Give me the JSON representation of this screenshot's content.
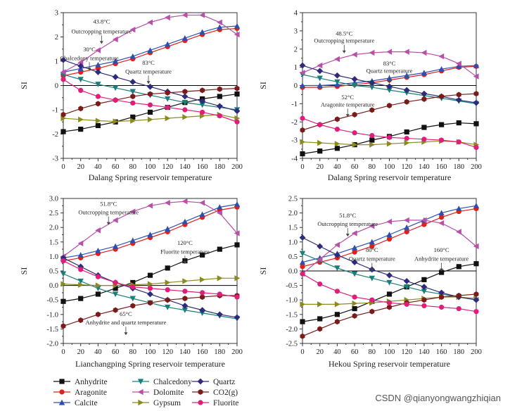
{
  "watermark": "CSDN @qianyongwangzhiqian",
  "legend_order": [
    "Anhydrite",
    "Chalcedony",
    "Quartz",
    "Aragonite",
    "Dolomite",
    "CO2(g)",
    "Calcite",
    "Gypsum",
    "Fluorite"
  ],
  "series_style": {
    "Anhydrite": {
      "color": "#111111",
      "marker": "square",
      "label": "Anhydrite"
    },
    "Chalcedony": {
      "color": "#1a7f7a",
      "marker": "triangle-down",
      "label": "Chalcedony"
    },
    "Quartz": {
      "color": "#2e2b7a",
      "marker": "diamond",
      "label": "Quartz"
    },
    "Aragonite": {
      "color": "#e0201b",
      "marker": "circle",
      "label": "Aragonite"
    },
    "Dolomite": {
      "color": "#b84fa8",
      "marker": "triangle-left",
      "label": "Dolomite"
    },
    "CO2(g)": {
      "color": "#7a1a1a",
      "marker": "hexagon",
      "label": "CO2(g)"
    },
    "Calcite": {
      "color": "#2f4fb0",
      "marker": "triangle-up",
      "label": "Calcite"
    },
    "Gypsum": {
      "color": "#8a8a1e",
      "marker": "triangle-right",
      "label": "Gypsum"
    },
    "Fluorite": {
      "color": "#e01e7a",
      "marker": "circle",
      "label": "Fluorite"
    }
  },
  "chart_data": [
    {
      "type": "line",
      "title": "Dalang Spring",
      "xlabel": "Dalang Spring reservoir temperature",
      "ylabel": "SI",
      "xlim": [
        0,
        200
      ],
      "ylim": [
        -3,
        3
      ],
      "xticks": [
        0,
        20,
        40,
        60,
        80,
        100,
        120,
        140,
        160,
        180,
        200
      ],
      "yticks": [
        -3,
        -2,
        -1,
        0,
        1,
        2,
        3
      ],
      "x": [
        0,
        20,
        40,
        60,
        80,
        100,
        120,
        140,
        160,
        180,
        200
      ],
      "series": [
        {
          "name": "Anhydrite",
          "values": [
            -1.9,
            -1.8,
            -1.65,
            -1.5,
            -1.3,
            -1.1,
            -0.9,
            -0.7,
            -0.55,
            -0.45,
            -0.35
          ]
        },
        {
          "name": "Aragonite",
          "values": [
            0.4,
            0.55,
            0.7,
            0.9,
            1.1,
            1.35,
            1.6,
            1.85,
            2.1,
            2.3,
            2.35
          ]
        },
        {
          "name": "Calcite",
          "values": [
            0.55,
            0.7,
            0.85,
            1.0,
            1.2,
            1.45,
            1.7,
            1.95,
            2.2,
            2.4,
            2.45
          ]
        },
        {
          "name": "Chalcedony",
          "values": [
            0.45,
            0.25,
            0.05,
            -0.1,
            -0.25,
            -0.4,
            -0.55,
            -0.7,
            -0.8,
            -0.9,
            -1.0
          ]
        },
        {
          "name": "Dolomite",
          "values": [
            0.55,
            0.95,
            1.45,
            1.9,
            2.3,
            2.6,
            2.8,
            2.9,
            2.9,
            2.6,
            2.1
          ]
        },
        {
          "name": "Gypsum",
          "values": [
            -1.35,
            -1.4,
            -1.45,
            -1.48,
            -1.45,
            -1.4,
            -1.35,
            -1.3,
            -1.25,
            -1.2,
            -1.35
          ]
        },
        {
          "name": "Quartz",
          "values": [
            1.05,
            0.8,
            0.55,
            0.35,
            0.15,
            -0.05,
            -0.25,
            -0.45,
            -0.65,
            -0.85,
            -1.05
          ]
        },
        {
          "name": "CO2(g)",
          "values": [
            -1.2,
            -0.95,
            -0.75,
            -0.6,
            -0.45,
            -0.35,
            -0.3,
            -0.25,
            -0.2,
            -0.15,
            -0.12
          ]
        },
        {
          "name": "Fluorite",
          "values": [
            0.25,
            -0.2,
            -0.45,
            -0.6,
            -0.72,
            -0.8,
            -0.9,
            -1.0,
            -1.1,
            -1.25,
            -1.5
          ]
        }
      ],
      "annotations": [
        {
          "text": "43.8°C",
          "x": 44,
          "y": 2.55
        },
        {
          "text": "Outcropping temperature",
          "x": 44,
          "y": 2.15
        },
        {
          "text": "30°C",
          "x": 30,
          "y": 1.4
        },
        {
          "text": "Chalcedony temperature",
          "x": 30,
          "y": 1.05
        },
        {
          "text": "83°C",
          "x": 98,
          "y": 0.85
        },
        {
          "text": "Quartz temperature",
          "x": 98,
          "y": 0.5
        }
      ]
    },
    {
      "type": "line",
      "title": "Dalang Spring",
      "xlabel": "Dalang Spring reservoir temperature",
      "ylabel": "SI",
      "xlim": [
        0,
        200
      ],
      "ylim": [
        -4,
        4
      ],
      "xticks": [
        0,
        20,
        40,
        60,
        80,
        100,
        120,
        140,
        160,
        180,
        200
      ],
      "yticks": [
        -4,
        -3,
        -2,
        -1,
        0,
        1,
        2,
        3,
        4
      ],
      "x": [
        0,
        20,
        40,
        60,
        80,
        100,
        120,
        140,
        160,
        180,
        200
      ],
      "series": [
        {
          "name": "Anhydrite",
          "values": [
            -3.75,
            -3.6,
            -3.45,
            -3.25,
            -3.0,
            -2.8,
            -2.55,
            -2.3,
            -2.15,
            -2.05,
            -2.1
          ]
        },
        {
          "name": "Aragonite",
          "values": [
            -0.1,
            -0.1,
            -0.05,
            0.05,
            0.15,
            0.3,
            0.45,
            0.6,
            0.8,
            1.0,
            1.05
          ]
        },
        {
          "name": "Calcite",
          "values": [
            0.0,
            0.0,
            0.05,
            0.15,
            0.25,
            0.4,
            0.55,
            0.7,
            0.9,
            1.05,
            1.1
          ]
        },
        {
          "name": "Chalcedony",
          "values": [
            0.6,
            0.4,
            0.2,
            0.0,
            -0.1,
            -0.25,
            -0.4,
            -0.55,
            -0.7,
            -0.85,
            -1.0
          ]
        },
        {
          "name": "Dolomite",
          "values": [
            0.7,
            1.1,
            1.45,
            1.7,
            1.8,
            1.85,
            1.85,
            1.8,
            1.6,
            1.2,
            0.5
          ]
        },
        {
          "name": "Gypsum",
          "values": [
            -3.1,
            -3.15,
            -3.2,
            -3.25,
            -3.25,
            -3.2,
            -3.15,
            -3.1,
            -3.05,
            -3.1,
            -3.25
          ]
        },
        {
          "name": "Quartz",
          "values": [
            1.1,
            0.8,
            0.55,
            0.35,
            0.15,
            -0.05,
            -0.25,
            -0.45,
            -0.6,
            -0.8,
            -0.95
          ]
        },
        {
          "name": "CO2(g)",
          "values": [
            -2.45,
            -2.15,
            -1.85,
            -1.6,
            -1.35,
            -1.1,
            -0.9,
            -0.75,
            -0.6,
            -0.5,
            -0.45
          ]
        },
        {
          "name": "Fluorite",
          "values": [
            -1.8,
            -2.15,
            -2.4,
            -2.6,
            -2.75,
            -2.85,
            -2.9,
            -2.95,
            -3.0,
            -3.1,
            -3.4
          ]
        }
      ],
      "annotations": [
        {
          "text": "48.5°C",
          "x": 48,
          "y": 2.75
        },
        {
          "text": "Outcropping temperature",
          "x": 48,
          "y": 2.35
        },
        {
          "text": "83°C",
          "x": 100,
          "y": 1.1
        },
        {
          "text": "Quartz temperature",
          "x": 100,
          "y": 0.7
        },
        {
          "text": "52°C",
          "x": 52,
          "y": -0.75
        },
        {
          "text": "Aragonite temperature",
          "x": 52,
          "y": -1.15
        }
      ]
    },
    {
      "type": "line",
      "title": "Lianchangping Spring",
      "xlabel": "Lianchangping Spring reservoir temperature",
      "ylabel": "SI",
      "xlim": [
        0,
        200
      ],
      "ylim": [
        -2.0,
        3.0
      ],
      "xticks": [
        0,
        20,
        40,
        60,
        80,
        100,
        120,
        140,
        160,
        180,
        200
      ],
      "yticks": [
        -2.0,
        -1.5,
        -1.0,
        -0.5,
        0.0,
        0.5,
        1.0,
        1.5,
        2.0,
        2.5,
        3.0
      ],
      "x": [
        0,
        20,
        40,
        60,
        80,
        100,
        120,
        140,
        160,
        180,
        200
      ],
      "series": [
        {
          "name": "Anhydrite",
          "values": [
            -0.55,
            -0.45,
            -0.3,
            -0.1,
            0.1,
            0.35,
            0.6,
            0.85,
            1.05,
            1.25,
            1.4
          ]
        },
        {
          "name": "Aragonite",
          "values": [
            0.85,
            0.95,
            1.1,
            1.25,
            1.45,
            1.65,
            1.85,
            2.1,
            2.35,
            2.6,
            2.7
          ]
        },
        {
          "name": "Calcite",
          "values": [
            0.95,
            1.05,
            1.2,
            1.35,
            1.55,
            1.75,
            1.95,
            2.2,
            2.45,
            2.7,
            2.8
          ]
        },
        {
          "name": "Chalcedony",
          "values": [
            0.4,
            0.15,
            -0.1,
            -0.3,
            -0.45,
            -0.6,
            -0.75,
            -0.85,
            -0.95,
            -1.05,
            -1.15
          ]
        },
        {
          "name": "Dolomite",
          "values": [
            1.0,
            1.45,
            1.9,
            2.25,
            2.55,
            2.75,
            2.85,
            2.9,
            2.85,
            2.5,
            1.8
          ]
        },
        {
          "name": "Gypsum",
          "values": [
            0.05,
            0.02,
            0.0,
            0.0,
            0.02,
            0.05,
            0.1,
            0.15,
            0.2,
            0.25,
            0.25
          ]
        },
        {
          "name": "Quartz",
          "values": [
            0.95,
            0.65,
            0.35,
            0.1,
            -0.1,
            -0.3,
            -0.5,
            -0.7,
            -0.85,
            -1.0,
            -1.1
          ]
        },
        {
          "name": "CO2(g)",
          "values": [
            -1.4,
            -1.2,
            -1.0,
            -0.85,
            -0.7,
            -0.6,
            -0.5,
            -0.45,
            -0.4,
            -0.35,
            -0.35
          ]
        },
        {
          "name": "Fluorite",
          "values": [
            0.85,
            0.55,
            0.3,
            0.1,
            -0.05,
            -0.1,
            -0.15,
            -0.2,
            -0.25,
            -0.3,
            -0.4
          ]
        }
      ],
      "annotations": [
        {
          "text": "51.8°C",
          "x": 52,
          "y": 2.75
        },
        {
          "text": "Outcropping temperature",
          "x": 52,
          "y": 2.45
        },
        {
          "text": "120°C",
          "x": 140,
          "y": 1.4
        },
        {
          "text": "Fluorite temperature",
          "x": 140,
          "y": 1.1
        },
        {
          "text": "65°C",
          "x": 72,
          "y": -1.05
        },
        {
          "text": "Anhydrite and quartz temperature",
          "x": 72,
          "y": -1.35
        }
      ]
    },
    {
      "type": "line",
      "title": "Hekou Spring",
      "xlabel": "Hekou Spring reservoir temperature",
      "ylabel": "SI",
      "xlim": [
        0,
        200
      ],
      "ylim": [
        -2.5,
        2.5
      ],
      "xticks": [
        0,
        20,
        40,
        60,
        80,
        100,
        120,
        140,
        160,
        180,
        200
      ],
      "yticks": [
        -2.5,
        -2.0,
        -1.5,
        -1.0,
        -0.5,
        0.0,
        0.5,
        1.0,
        1.5,
        2.0,
        2.5
      ],
      "x": [
        0,
        20,
        40,
        60,
        80,
        100,
        120,
        140,
        160,
        180,
        200
      ],
      "series": [
        {
          "name": "Anhydrite",
          "values": [
            -1.75,
            -1.65,
            -1.5,
            -1.3,
            -1.05,
            -0.8,
            -0.55,
            -0.3,
            -0.05,
            0.15,
            0.25
          ]
        },
        {
          "name": "Aragonite",
          "values": [
            0.15,
            0.3,
            0.45,
            0.65,
            0.85,
            1.1,
            1.35,
            1.6,
            1.85,
            2.05,
            2.15
          ]
        },
        {
          "name": "Calcite",
          "values": [
            0.3,
            0.45,
            0.6,
            0.8,
            1.0,
            1.25,
            1.5,
            1.75,
            2.0,
            2.15,
            2.25
          ]
        },
        {
          "name": "Chalcedony",
          "values": [
            0.6,
            0.35,
            0.1,
            -0.1,
            -0.25,
            -0.4,
            -0.55,
            -0.7,
            -0.8,
            -0.9,
            -1.0
          ]
        },
        {
          "name": "Dolomite",
          "values": [
            -0.1,
            0.4,
            0.9,
            1.3,
            1.55,
            1.7,
            1.75,
            1.75,
            1.65,
            1.35,
            0.85
          ]
        },
        {
          "name": "Gypsum",
          "values": [
            -1.15,
            -1.15,
            -1.15,
            -1.12,
            -1.1,
            -1.05,
            -1.0,
            -0.95,
            -0.9,
            -0.9,
            -0.95
          ]
        },
        {
          "name": "Quartz",
          "values": [
            1.15,
            0.85,
            0.55,
            0.3,
            0.05,
            -0.15,
            -0.35,
            -0.55,
            -0.75,
            -0.9,
            -1.0
          ]
        },
        {
          "name": "CO2(g)",
          "values": [
            -2.25,
            -2.0,
            -1.75,
            -1.55,
            -1.4,
            -1.25,
            -1.1,
            -1.0,
            -0.9,
            -0.85,
            -0.8
          ]
        },
        {
          "name": "Fluorite",
          "values": [
            -0.1,
            -0.45,
            -0.7,
            -0.9,
            -1.0,
            -1.1,
            -1.15,
            -1.2,
            -1.25,
            -1.3,
            -1.4
          ]
        }
      ],
      "annotations": [
        {
          "text": "51.8°C",
          "x": 52,
          "y": 1.85
        },
        {
          "text": "Outcropping temperature",
          "x": 52,
          "y": 1.55
        },
        {
          "text": "80°C",
          "x": 80,
          "y": 0.65
        },
        {
          "text": "Quartz temperature",
          "x": 80,
          "y": 0.35
        },
        {
          "text": "160°C",
          "x": 160,
          "y": 0.65
        },
        {
          "text": "Anhydrite temperature",
          "x": 160,
          "y": 0.35
        }
      ]
    }
  ]
}
